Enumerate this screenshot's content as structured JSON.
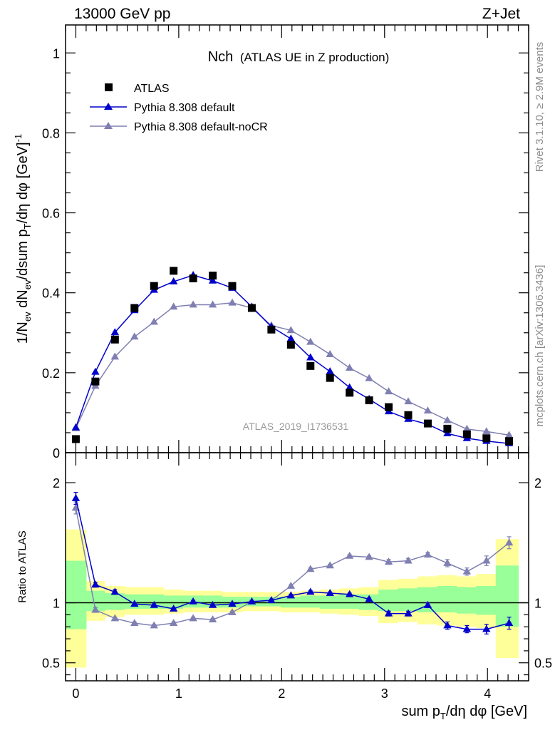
{
  "header": {
    "energy_label": "13000 GeV pp",
    "process_label": "Z+Jet"
  },
  "side_text": {
    "rivet_label": "Rivet 3.1.10, ≥ 2.9M events",
    "mcplots_label": "mcplots.cern.ch [arXiv:1306.3436]"
  },
  "colors": {
    "atlas": "#000000",
    "default": "#0000cc",
    "nocr": "#7f7fb2",
    "band_inner": "#99ff99",
    "band_outer": "#ffff99"
  },
  "chart_data": [
    {
      "type": "line",
      "title": "Nch",
      "subtitle": "(ATLAS UE in Z production)",
      "analysis_label": "ATLAS_2019_I1736531",
      "xlabel": "sum p_T/dη dφ [GeV]",
      "ylabel": "1/N_ev dN_ev/dsum p_T/dη dφ [GeV]^-1",
      "xlim": [
        -0.1,
        4.4
      ],
      "ylim": [
        0,
        1.07
      ],
      "yticks": [
        0,
        0.2,
        0.4,
        0.6,
        0.8,
        1
      ],
      "ytick_labels": [
        "0",
        "0.2",
        "0.4",
        "0.6",
        "0.8",
        "1"
      ],
      "legend_position": "top-left",
      "x": [
        0.0,
        0.19,
        0.38,
        0.57,
        0.76,
        0.95,
        1.14,
        1.33,
        1.52,
        1.71,
        1.9,
        2.09,
        2.28,
        2.47,
        2.66,
        2.85,
        3.04,
        3.23,
        3.42,
        3.61,
        3.8,
        3.99,
        4.21
      ],
      "series": [
        {
          "name": "ATLAS",
          "style": "marker-square",
          "values": [
            0.034,
            0.178,
            0.283,
            0.362,
            0.417,
            0.455,
            0.436,
            0.443,
            0.417,
            0.362,
            0.308,
            0.27,
            0.217,
            0.187,
            0.15,
            0.131,
            0.114,
            0.094,
            0.073,
            0.06,
            0.046,
            0.036,
            0.029
          ]
        },
        {
          "name": "Pythia 8.308 default",
          "style": "line-triangle",
          "values": [
            0.063,
            0.202,
            0.301,
            0.356,
            0.407,
            0.428,
            0.444,
            0.43,
            0.412,
            0.365,
            0.315,
            0.285,
            0.238,
            0.203,
            0.163,
            0.134,
            0.103,
            0.084,
            0.071,
            0.048,
            0.036,
            0.029,
            0.023
          ]
        },
        {
          "name": "Pythia 8.308 default-noCR",
          "style": "line-triangle",
          "values": [
            0.061,
            0.167,
            0.24,
            0.29,
            0.327,
            0.365,
            0.37,
            0.37,
            0.375,
            0.362,
            0.318,
            0.306,
            0.277,
            0.246,
            0.212,
            0.186,
            0.153,
            0.128,
            0.105,
            0.081,
            0.059,
            0.053,
            0.044
          ]
        }
      ]
    },
    {
      "type": "line",
      "ylabel": "Ratio to ATLAS",
      "xlabel": "sum p_T/dη dφ [GeV]",
      "xlim": [
        -0.1,
        4.4
      ],
      "ylim": [
        0.35,
        2.25
      ],
      "yticks": [
        0.5,
        1,
        2
      ],
      "ytick_labels": [
        "0.5",
        "1",
        "2"
      ],
      "xticks": [
        0,
        1,
        2,
        3,
        4
      ],
      "xtick_labels": [
        "0",
        "1",
        "2",
        "3",
        "4"
      ],
      "bins": [
        [
          -0.1,
          0.1
        ],
        [
          0.1,
          0.28
        ],
        [
          0.28,
          0.47
        ],
        [
          0.47,
          0.66
        ],
        [
          0.66,
          0.85
        ],
        [
          0.85,
          1.04
        ],
        [
          1.04,
          1.23
        ],
        [
          1.23,
          1.42
        ],
        [
          1.42,
          1.61
        ],
        [
          1.61,
          1.8
        ],
        [
          1.8,
          1.99
        ],
        [
          1.99,
          2.18
        ],
        [
          2.18,
          2.37
        ],
        [
          2.37,
          2.56
        ],
        [
          2.56,
          2.75
        ],
        [
          2.75,
          2.94
        ],
        [
          2.94,
          3.13
        ],
        [
          3.13,
          3.32
        ],
        [
          3.32,
          3.51
        ],
        [
          3.51,
          3.7
        ],
        [
          3.7,
          3.89
        ],
        [
          3.89,
          4.08
        ],
        [
          4.08,
          4.3
        ]
      ],
      "band_inner": [
        [
          0.78,
          1.35
        ],
        [
          0.93,
          1.1
        ],
        [
          0.94,
          1.08
        ],
        [
          0.95,
          1.07
        ],
        [
          0.95,
          1.07
        ],
        [
          0.95,
          1.06
        ],
        [
          0.96,
          1.06
        ],
        [
          0.96,
          1.06
        ],
        [
          0.96,
          1.05
        ],
        [
          0.97,
          1.05
        ],
        [
          0.97,
          1.05
        ],
        [
          0.96,
          1.05
        ],
        [
          0.96,
          1.06
        ],
        [
          0.95,
          1.06
        ],
        [
          0.95,
          1.07
        ],
        [
          0.94,
          1.07
        ],
        [
          0.93,
          1.11
        ],
        [
          0.93,
          1.12
        ],
        [
          0.92,
          1.13
        ],
        [
          0.92,
          1.14
        ],
        [
          0.91,
          1.13
        ],
        [
          0.9,
          1.14
        ],
        [
          0.8,
          1.31
        ]
      ],
      "band_outer": [
        [
          0.46,
          1.61
        ],
        [
          0.85,
          1.18
        ],
        [
          0.88,
          1.14
        ],
        [
          0.9,
          1.13
        ],
        [
          0.9,
          1.13
        ],
        [
          0.91,
          1.11
        ],
        [
          0.92,
          1.1
        ],
        [
          0.92,
          1.1
        ],
        [
          0.92,
          1.09
        ],
        [
          0.93,
          1.09
        ],
        [
          0.93,
          1.09
        ],
        [
          0.92,
          1.09
        ],
        [
          0.92,
          1.1
        ],
        [
          0.91,
          1.11
        ],
        [
          0.9,
          1.12
        ],
        [
          0.89,
          1.13
        ],
        [
          0.83,
          1.19
        ],
        [
          0.84,
          1.2
        ],
        [
          0.82,
          1.22
        ],
        [
          0.81,
          1.23
        ],
        [
          0.8,
          1.22
        ],
        [
          0.79,
          1.24
        ],
        [
          0.54,
          1.53
        ]
      ],
      "x": [
        0.0,
        0.19,
        0.38,
        0.57,
        0.76,
        0.95,
        1.14,
        1.33,
        1.52,
        1.71,
        1.9,
        2.09,
        2.28,
        2.47,
        2.66,
        2.85,
        3.04,
        3.23,
        3.42,
        3.61,
        3.8,
        3.99,
        4.21
      ],
      "series": [
        {
          "name": "Pythia 8.308 default",
          "values": [
            1.87,
            1.15,
            1.09,
            0.99,
            0.98,
            0.95,
            1.01,
            0.98,
            0.99,
            1.01,
            1.02,
            1.06,
            1.09,
            1.08,
            1.07,
            1.03,
            0.91,
            0.91,
            0.98,
            0.81,
            0.78,
            0.78,
            0.83
          ],
          "errors": [
            0.05,
            0.02,
            0.02,
            0.01,
            0.01,
            0.01,
            0.01,
            0.01,
            0.01,
            0.01,
            0.01,
            0.01,
            0.01,
            0.01,
            0.01,
            0.01,
            0.02,
            0.02,
            0.02,
            0.03,
            0.03,
            0.04,
            0.05
          ]
        },
        {
          "name": "Pythia 8.308 default-noCR",
          "values": [
            1.79,
            0.94,
            0.87,
            0.83,
            0.81,
            0.83,
            0.87,
            0.86,
            0.92,
            1.01,
            1.02,
            1.14,
            1.28,
            1.31,
            1.39,
            1.38,
            1.34,
            1.35,
            1.4,
            1.33,
            1.26,
            1.35,
            1.5
          ],
          "errors": [
            0.05,
            0.02,
            0.01,
            0.01,
            0.01,
            0.01,
            0.01,
            0.01,
            0.01,
            0.01,
            0.01,
            0.01,
            0.01,
            0.01,
            0.01,
            0.01,
            0.02,
            0.02,
            0.02,
            0.03,
            0.03,
            0.04,
            0.05
          ]
        }
      ]
    }
  ]
}
